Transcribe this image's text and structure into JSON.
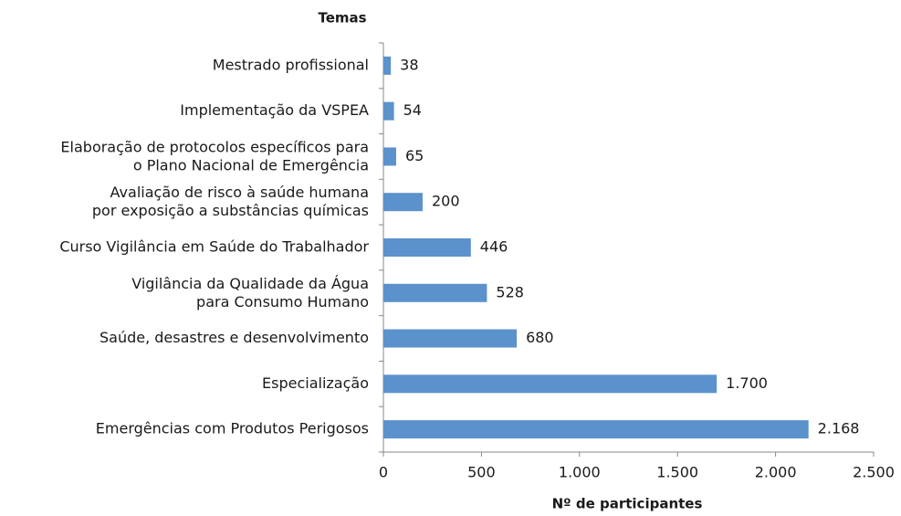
{
  "chart_data": {
    "type": "barh",
    "y_label": "Temas",
    "x_label": "Nº de participantes",
    "categories": [
      "Mestrado profissional",
      "Implementação da VSPEA",
      "Elaboração de protocolos específicos para\no Plano Nacional de Emergência",
      "Avaliação de risco à saúde humana\npor exposição a substâncias químicas",
      "Curso Vigilância em Saúde do Trabalhador",
      "Vigilância da Qualidade da Água\npara Consumo Humano",
      "Saúde, desastres e desenvolvimento",
      "Especialização",
      "Emergências com Produtos Perigosos"
    ],
    "values": [
      38,
      54,
      65,
      200,
      446,
      528,
      680,
      1700,
      2168
    ],
    "value_labels": [
      "38",
      "54",
      "65",
      "200",
      "446",
      "528",
      "680",
      "1.700",
      "2.168"
    ],
    "color": "#5b92cc",
    "xlim": [
      0,
      2500
    ],
    "xticks": [
      0,
      500,
      {
        "value": 1000,
        "label": "1.000"
      },
      {
        "value": 1500,
        "label": "1.500"
      },
      {
        "value": 2000,
        "label": "2.000"
      },
      {
        "value": 2500,
        "label": "2.500"
      }
    ]
  }
}
